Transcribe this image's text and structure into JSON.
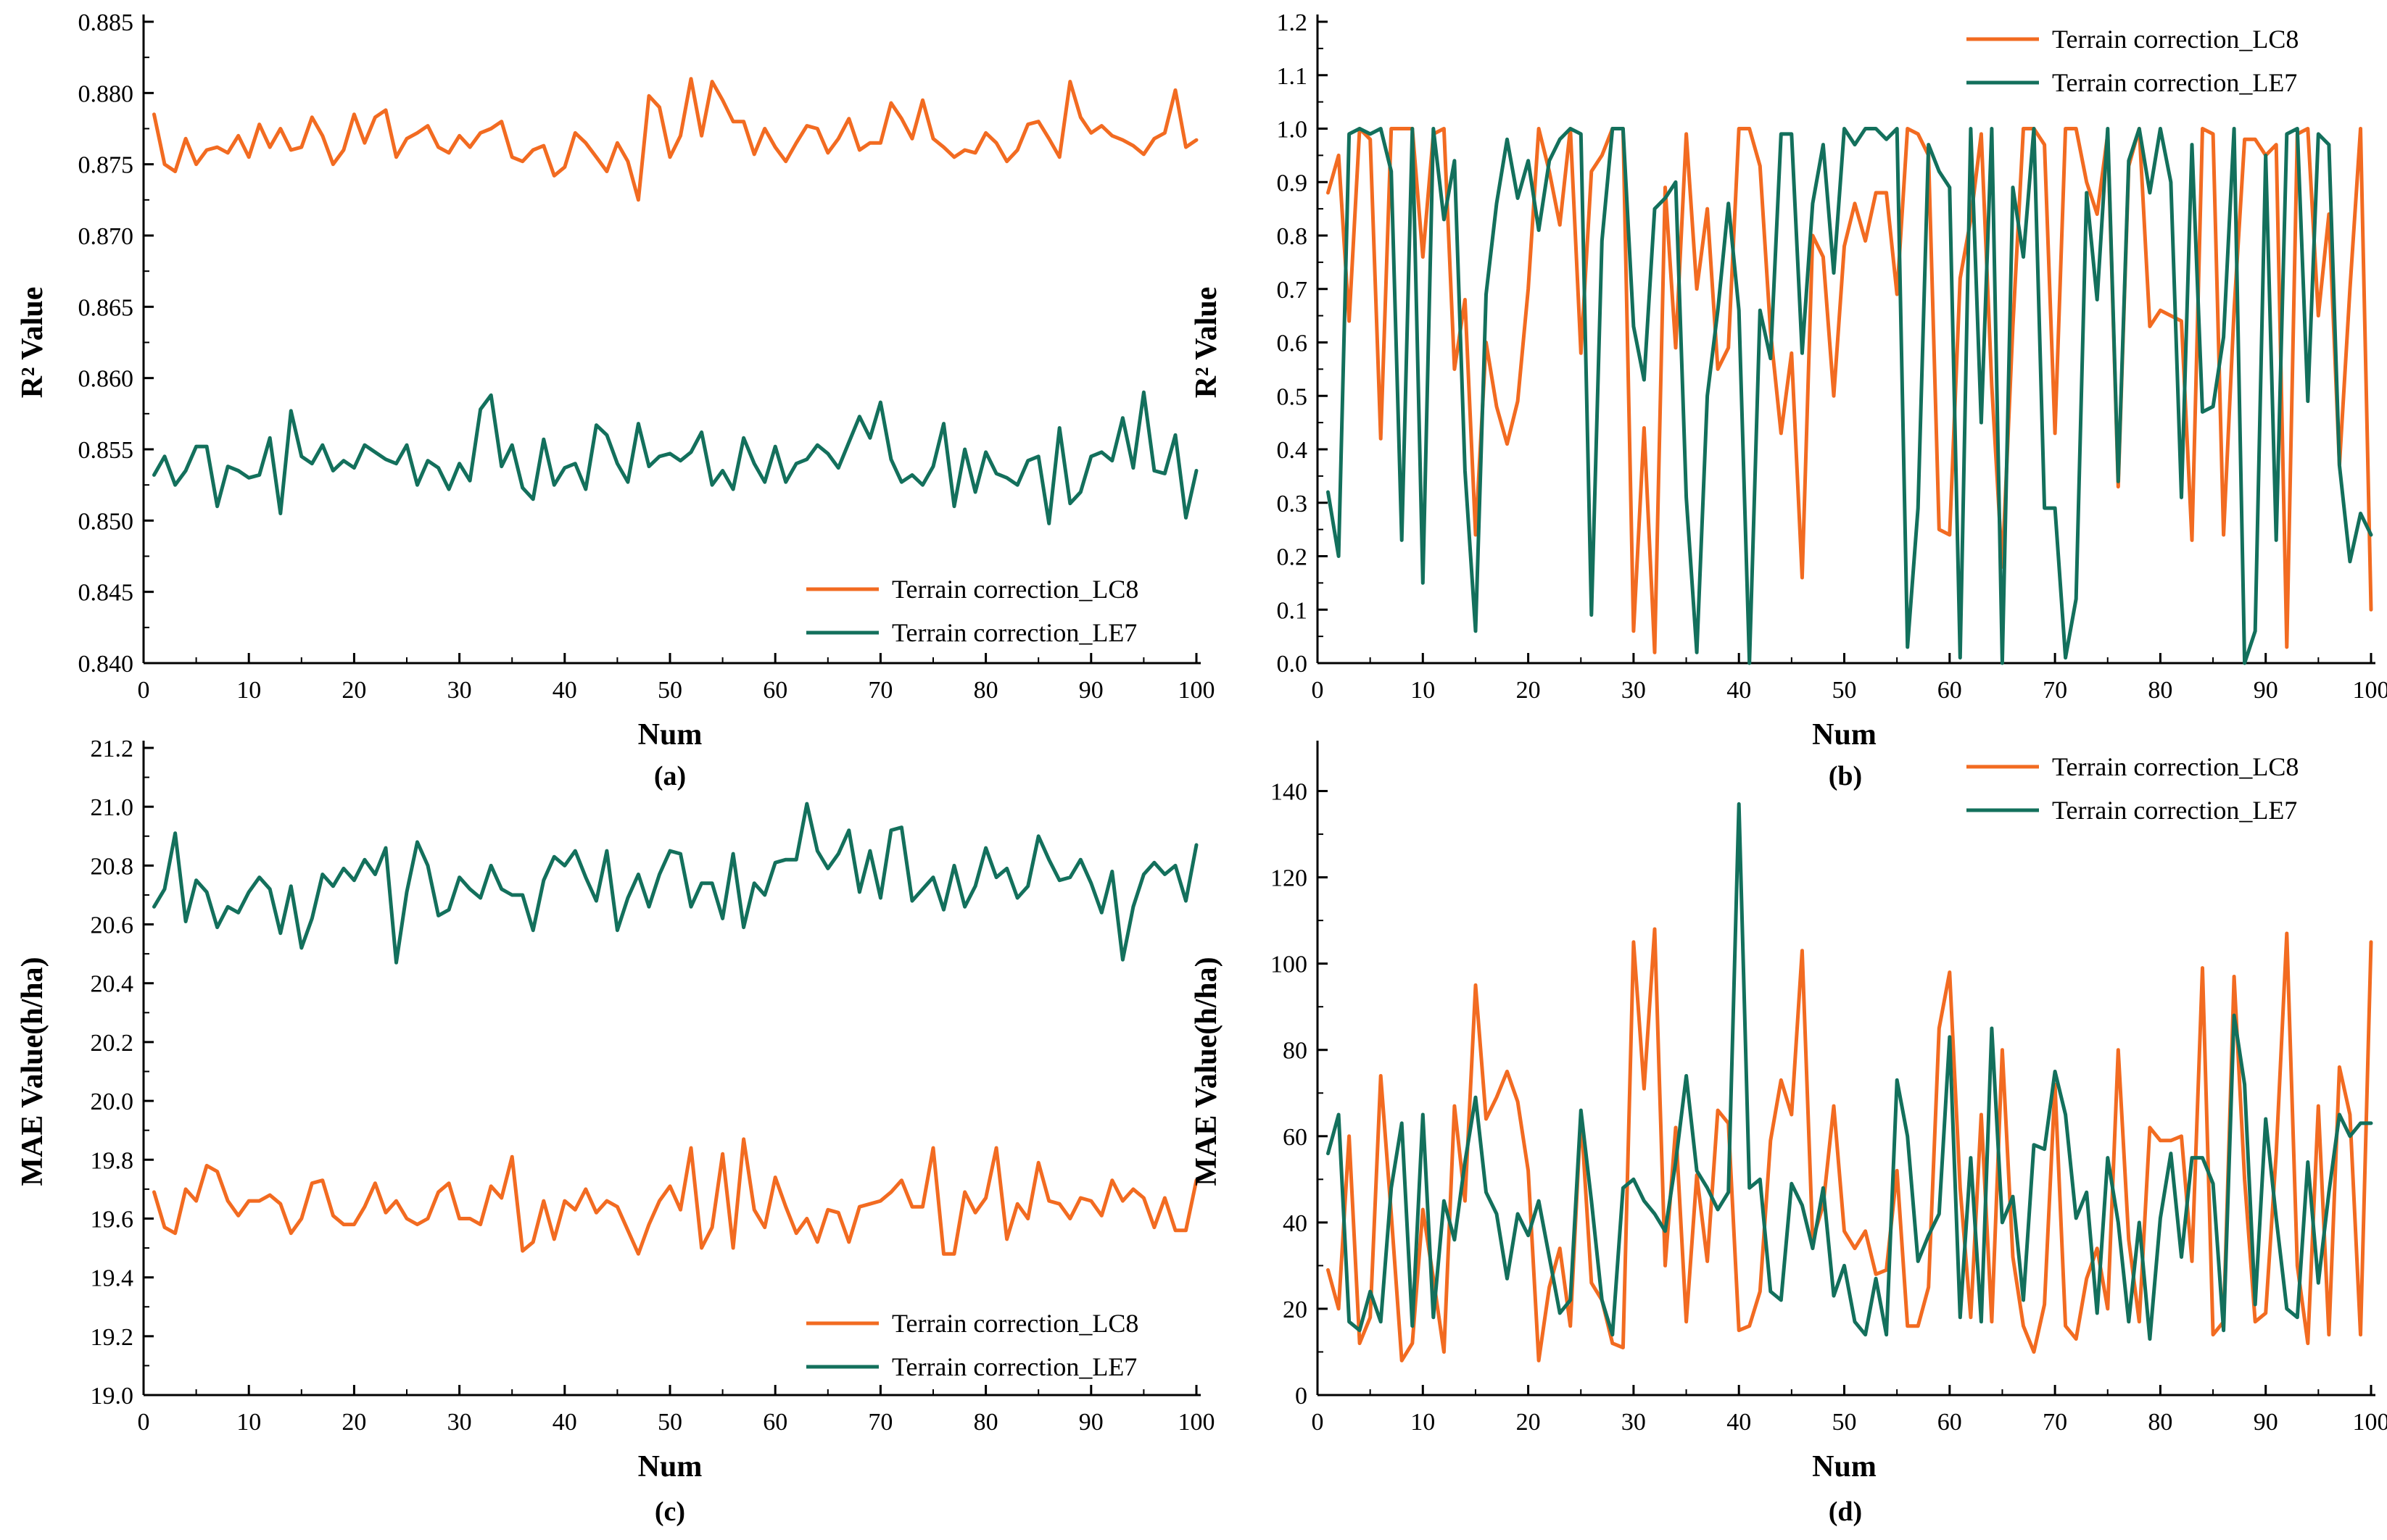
{
  "chart_data": [
    {
      "type": "line",
      "panel": "(a)",
      "xlabel": "Num",
      "ylabel": "R² Value",
      "xlim": [
        0,
        100
      ],
      "ylim": [
        0.84,
        0.885
      ],
      "xticks": [
        "0",
        "10",
        "20",
        "30",
        "40",
        "50",
        "60",
        "70",
        "80",
        "90",
        "100"
      ],
      "yticks": [
        "0.840",
        "0.845",
        "0.850",
        "0.855",
        "0.860",
        "0.865",
        "0.870",
        "0.875",
        "0.880",
        "0.885"
      ],
      "legend_position": "bottom-right",
      "series": [
        {
          "name": "Terrain correction_LC8",
          "color": "#f26b21",
          "values": [
            0.8785,
            0.875,
            0.8745,
            0.8768,
            0.875,
            0.876,
            0.8762,
            0.8758,
            0.877,
            0.8755,
            0.8778,
            0.8762,
            0.8775,
            0.876,
            0.8762,
            0.8783,
            0.877,
            0.875,
            0.876,
            0.8785,
            0.8765,
            0.8783,
            0.8788,
            0.8755,
            0.8768,
            0.8772,
            0.8777,
            0.8762,
            0.8758,
            0.877,
            0.8762,
            0.8772,
            0.8775,
            0.878,
            0.8755,
            0.8752,
            0.876,
            0.8763,
            0.8742,
            0.8748,
            0.8772,
            0.8765,
            0.8755,
            0.8745,
            0.8765,
            0.8752,
            0.8725,
            0.8798,
            0.879,
            0.8755,
            0.877,
            0.881,
            0.877,
            0.8808,
            0.8795,
            0.878,
            0.878,
            0.8757,
            0.8775,
            0.8762,
            0.8752,
            0.8765,
            0.8777,
            0.8775,
            0.8758,
            0.8768,
            0.8782,
            0.876,
            0.8765,
            0.8765,
            0.8793,
            0.8782,
            0.8768,
            0.8795,
            0.8768,
            0.8762,
            0.8755,
            0.876,
            0.8758,
            0.8772,
            0.8765,
            0.8752,
            0.876,
            0.8778,
            0.878,
            0.8768,
            0.8755,
            0.8808,
            0.8783,
            0.8772,
            0.8777,
            0.877,
            0.8767,
            0.8763,
            0.8757,
            0.8768,
            0.8772,
            0.8802,
            0.8762,
            0.8767
          ]
        },
        {
          "name": "Terrain correction_LE7",
          "color": "#13705c",
          "values": [
            0.8532,
            0.8545,
            0.8525,
            0.8535,
            0.8552,
            0.8552,
            0.851,
            0.8538,
            0.8535,
            0.853,
            0.8532,
            0.8558,
            0.8505,
            0.8577,
            0.8545,
            0.854,
            0.8553,
            0.8535,
            0.8542,
            0.8537,
            0.8553,
            0.8548,
            0.8543,
            0.854,
            0.8553,
            0.8525,
            0.8542,
            0.8537,
            0.8522,
            0.854,
            0.8528,
            0.8578,
            0.8588,
            0.8538,
            0.8553,
            0.8523,
            0.8515,
            0.8557,
            0.8525,
            0.8537,
            0.854,
            0.8522,
            0.8567,
            0.856,
            0.854,
            0.8527,
            0.8568,
            0.8538,
            0.8545,
            0.8547,
            0.8542,
            0.8548,
            0.8562,
            0.8525,
            0.8535,
            0.8522,
            0.8558,
            0.854,
            0.8527,
            0.8552,
            0.8527,
            0.854,
            0.8543,
            0.8553,
            0.8547,
            0.8537,
            0.8555,
            0.8573,
            0.8558,
            0.8583,
            0.8543,
            0.8527,
            0.8532,
            0.8525,
            0.8538,
            0.8568,
            0.851,
            0.855,
            0.852,
            0.8548,
            0.8533,
            0.853,
            0.8525,
            0.8542,
            0.8545,
            0.8498,
            0.8565,
            0.8512,
            0.852,
            0.8545,
            0.8548,
            0.8542,
            0.8572,
            0.8537,
            0.859,
            0.8535,
            0.8533,
            0.856,
            0.8502,
            0.8535
          ]
        }
      ]
    },
    {
      "type": "line",
      "panel": "(b)",
      "xlabel": "Num",
      "ylabel": "R² Value",
      "xlim": [
        0,
        100
      ],
      "ylim": [
        0.0,
        1.2
      ],
      "xticks": [
        "0",
        "10",
        "20",
        "30",
        "40",
        "50",
        "60",
        "70",
        "80",
        "90",
        "100"
      ],
      "yticks": [
        "0.0",
        "0.1",
        "0.2",
        "0.3",
        "0.4",
        "0.5",
        "0.6",
        "0.7",
        "0.8",
        "0.9",
        "1.0",
        "1.1",
        "1.2"
      ],
      "legend_position": "top-right",
      "series": [
        {
          "name": "Terrain correction_LC8",
          "color": "#f26b21",
          "values": [
            0.88,
            0.95,
            0.64,
            1.0,
            0.98,
            0.42,
            1.0,
            1.0,
            1.0,
            0.76,
            0.99,
            1.0,
            0.55,
            0.68,
            0.24,
            0.6,
            0.48,
            0.41,
            0.49,
            0.7,
            1.0,
            0.92,
            0.82,
            1.0,
            0.58,
            0.92,
            0.95,
            1.0,
            1.0,
            0.06,
            0.44,
            0.02,
            0.89,
            0.59,
            0.99,
            0.7,
            0.85,
            0.55,
            0.59,
            1.0,
            1.0,
            0.93,
            0.62,
            0.43,
            0.58,
            0.16,
            0.8,
            0.76,
            0.5,
            0.78,
            0.86,
            0.79,
            0.88,
            0.88,
            0.69,
            1.0,
            0.99,
            0.95,
            0.25,
            0.24,
            0.72,
            0.83,
            0.99,
            0.52,
            0.18,
            0.63,
            1.0,
            1.0,
            0.97,
            0.43,
            1.0,
            1.0,
            0.9,
            0.84,
            0.99,
            0.33,
            0.93,
            1.0,
            0.63,
            0.66,
            0.65,
            0.64,
            0.23,
            1.0,
            0.99,
            0.24,
            0.66,
            0.98,
            0.98,
            0.95,
            0.97,
            0.03,
            0.99,
            1.0,
            0.65,
            0.84,
            0.37,
            0.7,
            1.0,
            0.1
          ]
        },
        {
          "name": "Terrain correction_LE7",
          "color": "#13705c",
          "values": [
            0.32,
            0.2,
            0.99,
            1.0,
            0.99,
            1.0,
            0.92,
            0.23,
            1.0,
            0.15,
            1.0,
            0.83,
            0.94,
            0.36,
            0.06,
            0.69,
            0.86,
            0.98,
            0.87,
            0.94,
            0.81,
            0.94,
            0.98,
            1.0,
            0.99,
            0.09,
            0.79,
            1.0,
            1.0,
            0.63,
            0.53,
            0.85,
            0.87,
            0.9,
            0.31,
            0.02,
            0.5,
            0.66,
            0.86,
            0.66,
            0.0,
            0.66,
            0.57,
            0.99,
            0.99,
            0.58,
            0.86,
            0.97,
            0.73,
            1.0,
            0.97,
            1.0,
            1.0,
            0.98,
            1.0,
            0.03,
            0.29,
            0.97,
            0.92,
            0.89,
            0.01,
            1.0,
            0.45,
            1.0,
            0.0,
            0.89,
            0.76,
            1.0,
            0.29,
            0.29,
            0.01,
            0.12,
            0.88,
            0.68,
            1.0,
            0.34,
            0.94,
            1.0,
            0.88,
            1.0,
            0.9,
            0.31,
            0.97,
            0.47,
            0.48,
            0.61,
            1.0,
            0.0,
            0.06,
            0.95,
            0.23,
            0.99,
            1.0,
            0.49,
            0.99,
            0.97,
            0.37,
            0.19,
            0.28,
            0.24
          ]
        }
      ]
    },
    {
      "type": "line",
      "panel": "(c)",
      "xlabel": "Num",
      "ylabel": "MAE Value(h/ha)",
      "xlim": [
        0,
        100
      ],
      "ylim": [
        19.0,
        21.2
      ],
      "xticks": [
        "0",
        "10",
        "20",
        "30",
        "40",
        "50",
        "60",
        "70",
        "80",
        "90",
        "100"
      ],
      "yticks": [
        "19.0",
        "19.2",
        "19.4",
        "19.6",
        "19.8",
        "20.0",
        "20.2",
        "20.4",
        "20.6",
        "20.8",
        "21.0",
        "21.2"
      ],
      "legend_position": "bottom-right",
      "series": [
        {
          "name": "Terrain correction_LC8",
          "color": "#f26b21",
          "values": [
            19.69,
            19.57,
            19.55,
            19.7,
            19.66,
            19.78,
            19.76,
            19.66,
            19.61,
            19.66,
            19.66,
            19.68,
            19.65,
            19.55,
            19.6,
            19.72,
            19.73,
            19.61,
            19.58,
            19.58,
            19.64,
            19.72,
            19.62,
            19.66,
            19.6,
            19.58,
            19.6,
            19.69,
            19.72,
            19.6,
            19.6,
            19.58,
            19.71,
            19.67,
            19.81,
            19.49,
            19.52,
            19.66,
            19.53,
            19.66,
            19.63,
            19.7,
            19.62,
            19.66,
            19.64,
            19.56,
            19.48,
            19.58,
            19.66,
            19.71,
            19.63,
            19.84,
            19.5,
            19.57,
            19.82,
            19.5,
            19.87,
            19.63,
            19.57,
            19.74,
            19.64,
            19.55,
            19.6,
            19.52,
            19.63,
            19.62,
            19.52,
            19.64,
            19.65,
            19.66,
            19.69,
            19.73,
            19.64,
            19.64,
            19.84,
            19.48,
            19.48,
            19.69,
            19.62,
            19.67,
            19.84,
            19.53,
            19.65,
            19.6,
            19.79,
            19.66,
            19.65,
            19.6,
            19.67,
            19.66,
            19.61,
            19.73,
            19.66,
            19.7,
            19.67,
            19.57,
            19.67,
            19.56,
            19.56,
            19.73
          ]
        },
        {
          "name": "Terrain correction_LE7",
          "color": "#13705c",
          "values": [
            20.66,
            20.72,
            20.91,
            20.61,
            20.75,
            20.71,
            20.59,
            20.66,
            20.64,
            20.71,
            20.76,
            20.72,
            20.57,
            20.73,
            20.52,
            20.62,
            20.77,
            20.73,
            20.79,
            20.75,
            20.82,
            20.77,
            20.86,
            20.47,
            20.71,
            20.88,
            20.8,
            20.63,
            20.65,
            20.76,
            20.72,
            20.69,
            20.8,
            20.72,
            20.7,
            20.7,
            20.58,
            20.75,
            20.83,
            20.8,
            20.85,
            20.76,
            20.68,
            20.85,
            20.58,
            20.69,
            20.77,
            20.66,
            20.77,
            20.85,
            20.84,
            20.66,
            20.74,
            20.74,
            20.62,
            20.84,
            20.59,
            20.74,
            20.7,
            20.81,
            20.82,
            20.82,
            21.01,
            20.85,
            20.79,
            20.84,
            20.92,
            20.71,
            20.85,
            20.69,
            20.92,
            20.93,
            20.68,
            20.72,
            20.76,
            20.65,
            20.8,
            20.66,
            20.73,
            20.86,
            20.76,
            20.79,
            20.69,
            20.73,
            20.9,
            20.82,
            20.75,
            20.76,
            20.82,
            20.74,
            20.64,
            20.78,
            20.48,
            20.66,
            20.77,
            20.81,
            20.77,
            20.8,
            20.68,
            20.87
          ]
        }
      ]
    },
    {
      "type": "line",
      "panel": "(d)",
      "xlabel": "Num",
      "ylabel": "MAE Value(h/ha)",
      "xlim": [
        0,
        100
      ],
      "ylim": [
        0,
        150
      ],
      "xticks": [
        "0",
        "10",
        "20",
        "30",
        "40",
        "50",
        "60",
        "70",
        "80",
        "90",
        "100"
      ],
      "yticks": [
        "0",
        "20",
        "40",
        "60",
        "80",
        "100",
        "120",
        "140"
      ],
      "legend_position": "top-right",
      "series": [
        {
          "name": "Terrain correction_LC8",
          "color": "#f26b21",
          "values": [
            29,
            20,
            60,
            12,
            18,
            74,
            42,
            8,
            12,
            43,
            27,
            10,
            67,
            45,
            95,
            64,
            69,
            75,
            68,
            52,
            8,
            25,
            34,
            16,
            65,
            26,
            22,
            12,
            11,
            105,
            71,
            108,
            30,
            62,
            17,
            51,
            31,
            66,
            63,
            15,
            16,
            24,
            59,
            73,
            65,
            103,
            36,
            44,
            67,
            38,
            34,
            38,
            28,
            29,
            52,
            16,
            16,
            25,
            85,
            98,
            48,
            18,
            65,
            17,
            80,
            32,
            16,
            10,
            21,
            72,
            16,
            13,
            27,
            34,
            20,
            80,
            36,
            17,
            62,
            59,
            59,
            60,
            31,
            99,
            14,
            17,
            97,
            50,
            17,
            19,
            56,
            107,
            30,
            12,
            67,
            14,
            76,
            65,
            14,
            105
          ]
        },
        {
          "name": "Terrain correction_LE7",
          "color": "#13705c",
          "values": [
            56,
            65,
            17,
            15,
            24,
            17,
            48,
            63,
            16,
            65,
            18,
            45,
            36,
            54,
            69,
            47,
            42,
            27,
            42,
            37,
            45,
            32,
            19,
            22,
            66,
            45,
            22,
            14,
            48,
            50,
            45,
            42,
            38,
            54,
            74,
            52,
            48,
            43,
            47,
            137,
            48,
            50,
            24,
            22,
            49,
            44,
            34,
            48,
            23,
            30,
            17,
            14,
            27,
            14,
            73,
            60,
            31,
            37,
            42,
            83,
            18,
            55,
            17,
            85,
            40,
            46,
            22,
            58,
            57,
            75,
            65,
            41,
            47,
            19,
            55,
            40,
            17,
            40,
            13,
            41,
            56,
            32,
            55,
            55,
            49,
            15,
            88,
            72,
            21,
            64,
            41,
            20,
            18,
            54,
            26,
            47,
            65,
            60,
            63,
            63
          ]
        }
      ]
    }
  ],
  "panel_labels": [
    "(a)",
    "(b)",
    "(c)",
    "(d)"
  ]
}
